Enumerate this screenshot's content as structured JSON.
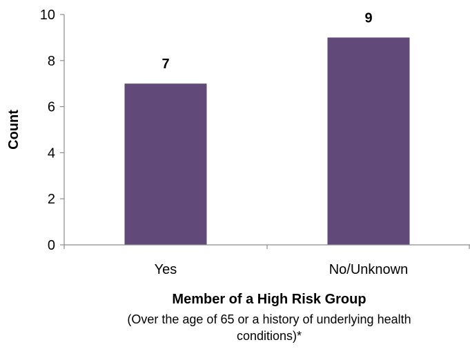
{
  "chart_data": {
    "type": "bar",
    "categories": [
      "Yes",
      "No/Unknown"
    ],
    "values": [
      7,
      9
    ],
    "data_labels": [
      "7",
      "9"
    ],
    "title": "",
    "xlabel": "Member of a High Risk Group",
    "xlabel_note_lines": [
      "(Over the age of 65 or a history of underlying health",
      "conditions)*"
    ],
    "ylabel": "Count",
    "ylim": [
      0,
      10
    ],
    "yticks": [
      0,
      2,
      4,
      6,
      8,
      10
    ],
    "ytick_labels": [
      "0",
      "2",
      "4",
      "6",
      "8",
      "10"
    ],
    "grid": false,
    "legend": "none",
    "colors": {
      "bar": "#614a7a",
      "axis": "#8c8c8c"
    }
  }
}
